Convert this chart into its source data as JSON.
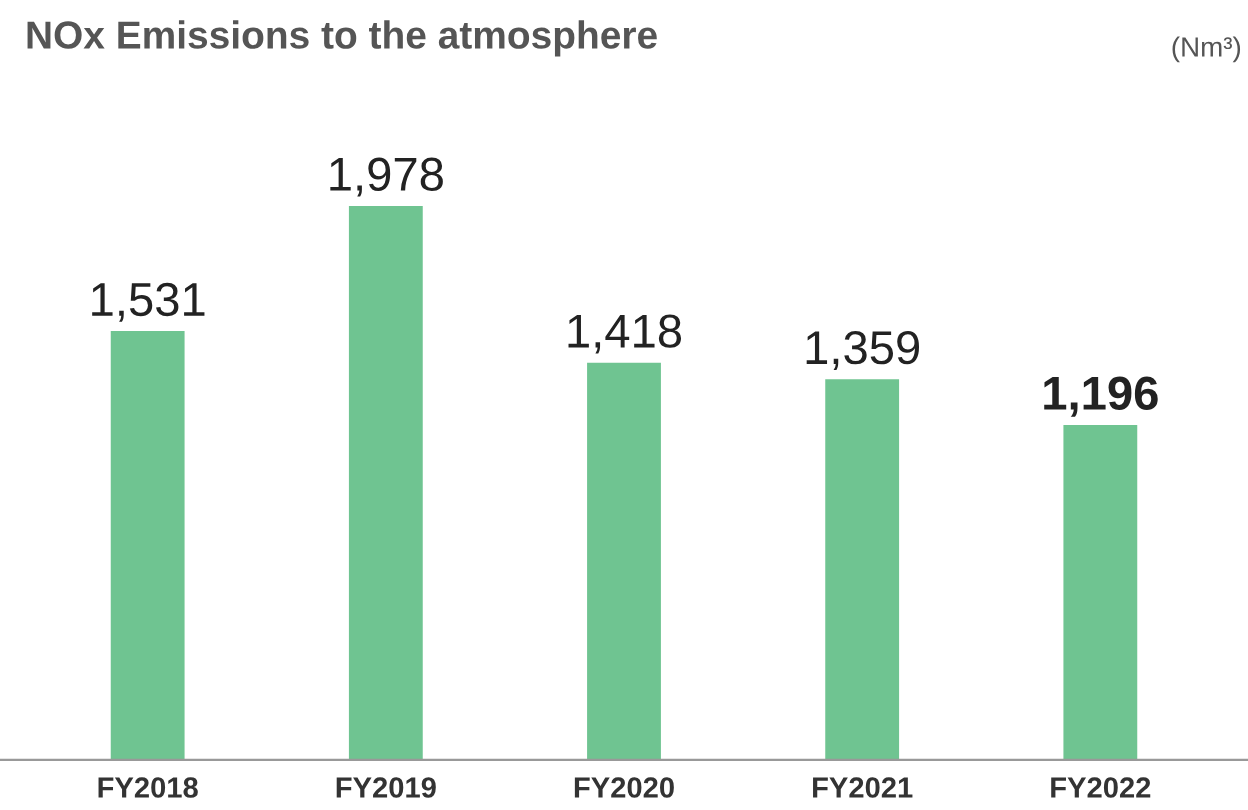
{
  "chart_data": {
    "type": "bar",
    "title": "NOx Emissions to the atmosphere",
    "annotations": [
      "(Nm³)"
    ],
    "categories": [
      "FY2018",
      "FY2019",
      "FY2020",
      "FY2021",
      "FY2022"
    ],
    "values": [
      1531,
      1978,
      1418,
      1359,
      1196
    ],
    "value_labels": [
      "1,531",
      "1,978",
      "1,418",
      "1,359",
      "1,196"
    ],
    "color": "#6fc491",
    "grid": false,
    "legend": false
  }
}
